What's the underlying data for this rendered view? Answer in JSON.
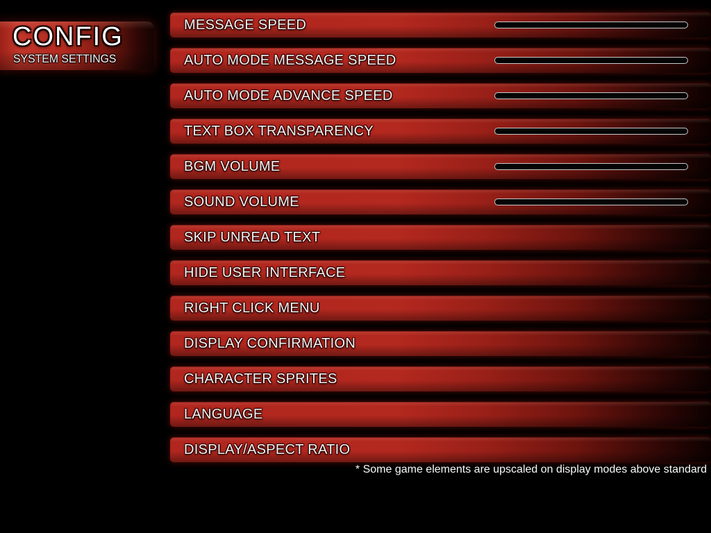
{
  "header": {
    "title": "CONFIG",
    "subtitle": "SYSTEM SETTINGS"
  },
  "settings": [
    {
      "label": "MESSAGE SPEED",
      "control": "slider"
    },
    {
      "label": "AUTO MODE MESSAGE SPEED",
      "control": "slider"
    },
    {
      "label": "AUTO MODE ADVANCE SPEED",
      "control": "slider"
    },
    {
      "label": "TEXT BOX TRANSPARENCY",
      "control": "slider"
    },
    {
      "label": "BGM VOLUME",
      "control": "slider"
    },
    {
      "label": "SOUND VOLUME",
      "control": "slider"
    },
    {
      "label": "SKIP UNREAD TEXT",
      "control": "none"
    },
    {
      "label": "HIDE USER INTERFACE",
      "control": "none"
    },
    {
      "label": "RIGHT CLICK MENU",
      "control": "none"
    },
    {
      "label": "DISPLAY CONFIRMATION",
      "control": "none"
    },
    {
      "label": "CHARACTER SPRITES",
      "control": "none"
    },
    {
      "label": "LANGUAGE",
      "control": "none"
    },
    {
      "label": "DISPLAY/ASPECT RATIO",
      "control": "none"
    }
  ],
  "footer": {
    "note": "* Some game elements are upscaled on display modes above standard"
  },
  "colors": {
    "background": "#000000",
    "bar_red_bright": "#b3281f",
    "bar_fade_dark": "#0c0100",
    "header_red": "#c2362a",
    "slider_border": "#c9c9c9",
    "slider_fill": "#040404",
    "label_text": "#f3f3f3"
  }
}
